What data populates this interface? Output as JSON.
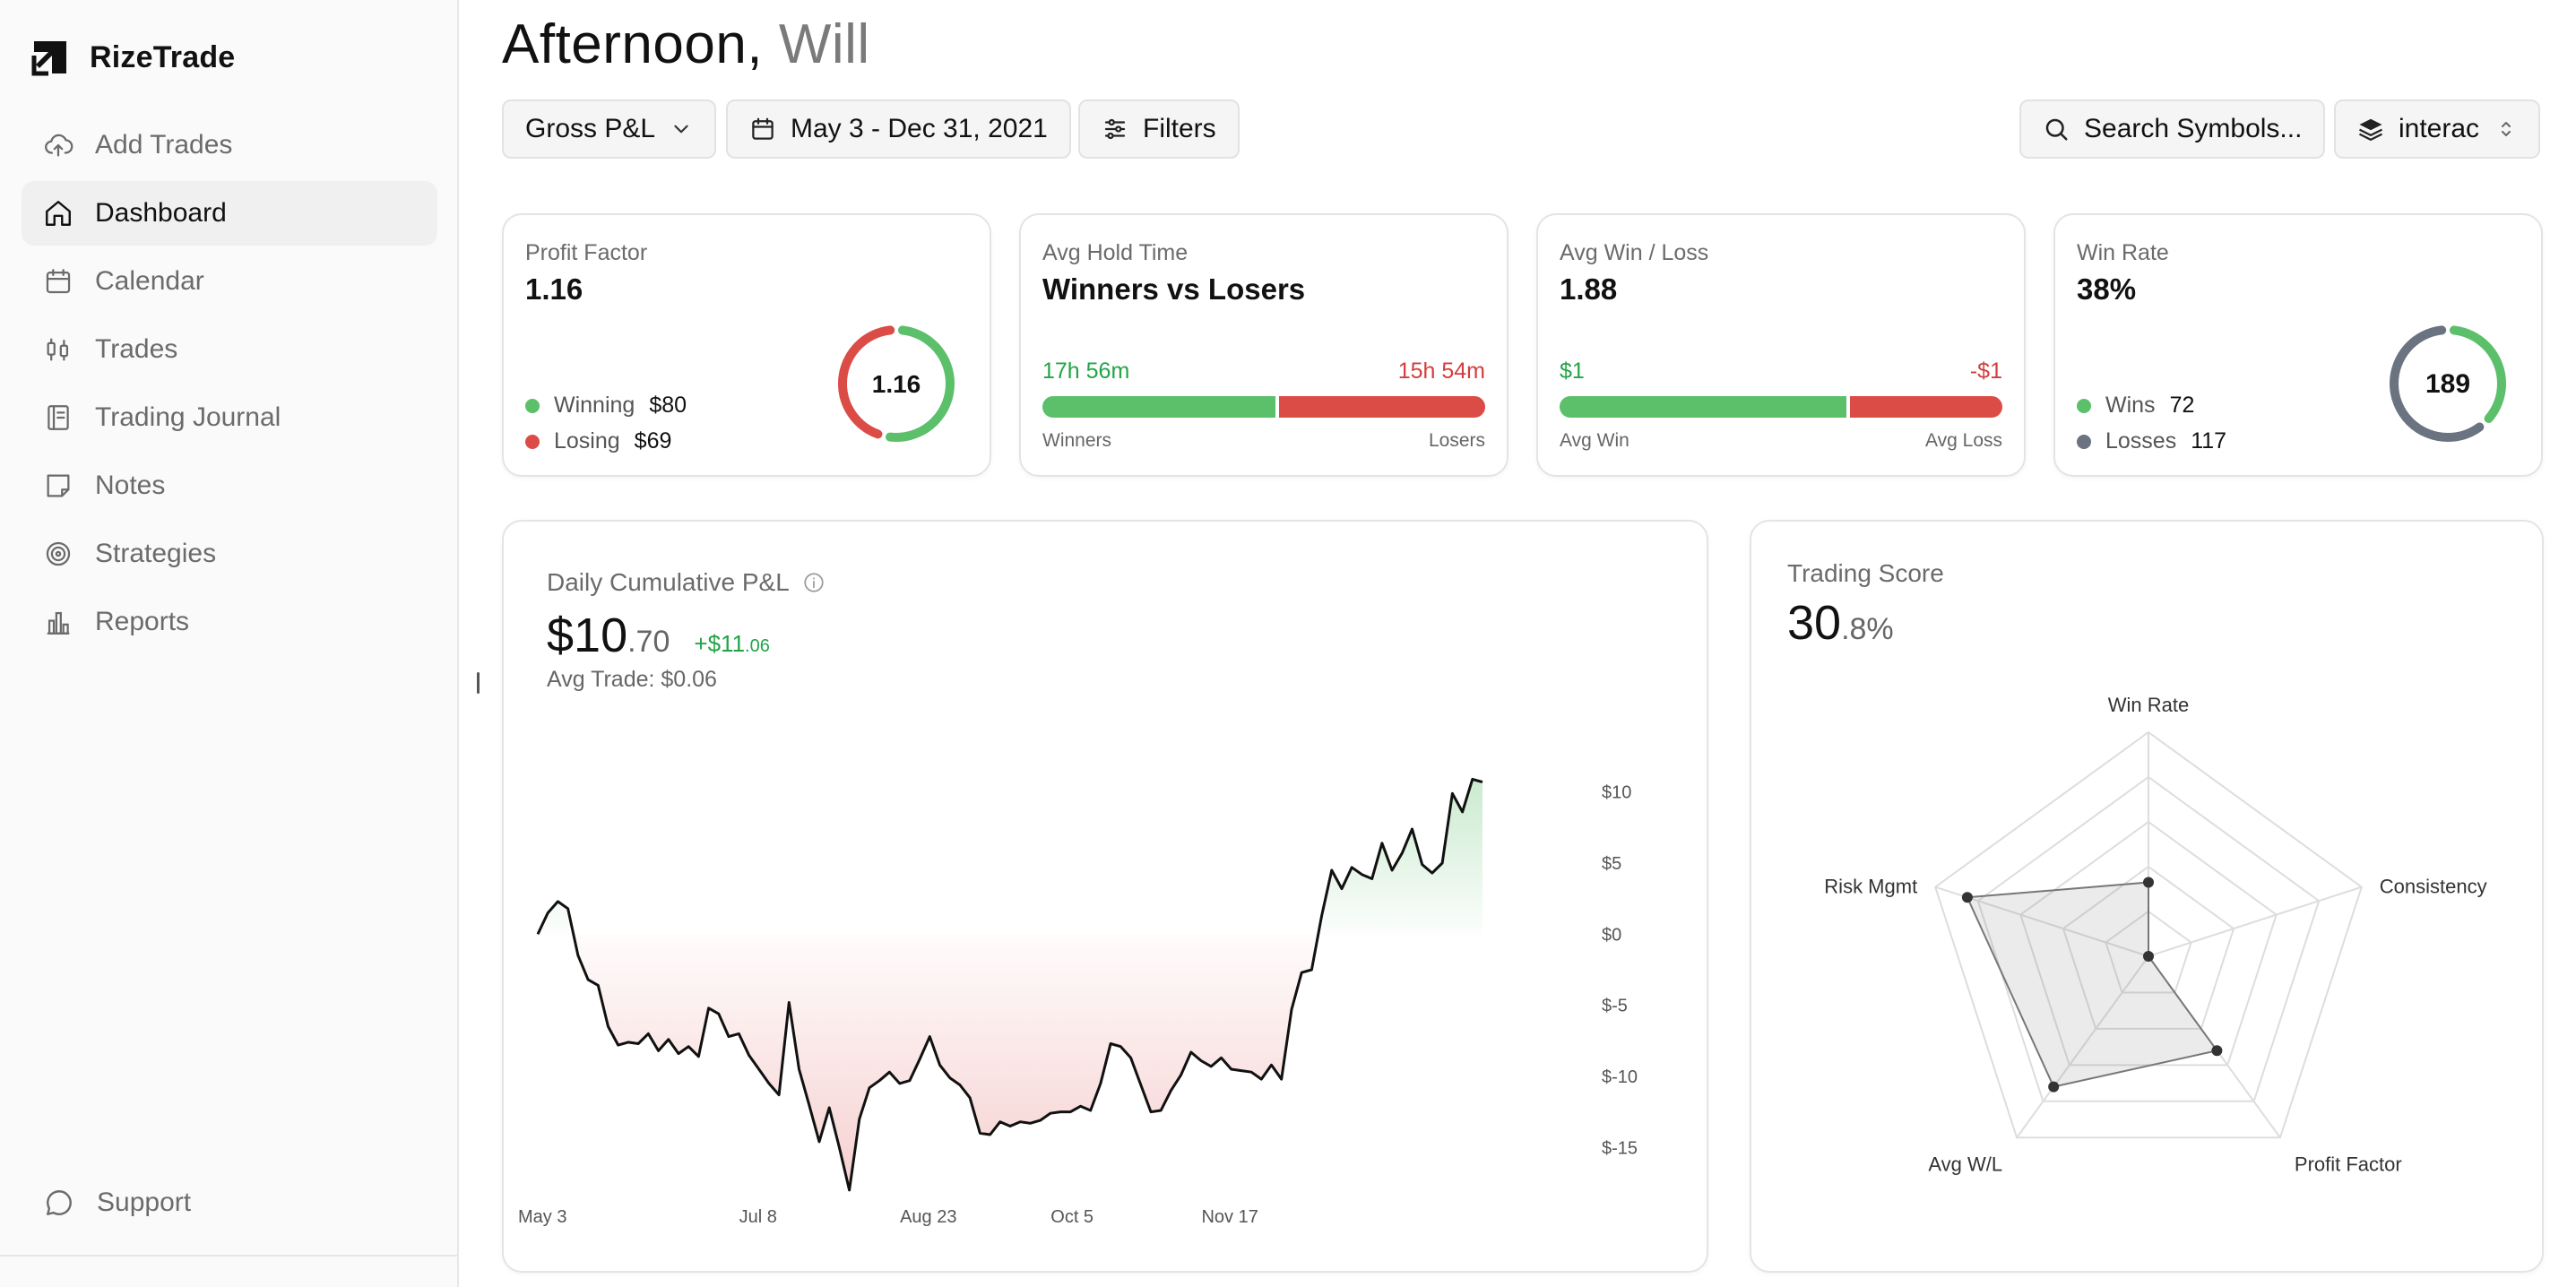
{
  "app": {
    "name": "RizeTrade"
  },
  "sidebar": {
    "items": [
      {
        "label": "Add Trades",
        "icon": "cloud-upload-icon",
        "active": false
      },
      {
        "label": "Dashboard",
        "icon": "home-icon",
        "active": true
      },
      {
        "label": "Calendar",
        "icon": "calendar-icon",
        "active": false
      },
      {
        "label": "Trades",
        "icon": "candlestick-icon",
        "active": false
      },
      {
        "label": "Trading Journal",
        "icon": "journal-icon",
        "active": false
      },
      {
        "label": "Notes",
        "icon": "note-icon",
        "active": false
      },
      {
        "label": "Strategies",
        "icon": "target-icon",
        "active": false
      },
      {
        "label": "Reports",
        "icon": "bar-chart-icon",
        "active": false
      }
    ],
    "support_label": "Support"
  },
  "header": {
    "greeting": "Afternoon,",
    "user": "Will",
    "pnl_select": "Gross P&L",
    "date_range": "May 3 - Dec 31, 2021",
    "filters_label": "Filters",
    "search_label": "Search Symbols...",
    "account_select": "interac"
  },
  "colors": {
    "green": "#5cbf6a",
    "red": "#dc4c46",
    "gray": "#6b7280",
    "positive_text": "#22a447",
    "negative_text": "#d43d3d"
  },
  "cards": {
    "profit_factor": {
      "label": "Profit Factor",
      "value": "1.16",
      "gauge_text": "1.16",
      "gauge_fraction": 0.537,
      "winning_label": "Winning",
      "winning_value": "$80",
      "losing_label": "Losing",
      "losing_value": "$69"
    },
    "avg_hold": {
      "label": "Avg Hold Time",
      "value": "Winners vs Losers",
      "left_value": "17h 56m",
      "right_value": "15h 54m",
      "left_caption": "Winners",
      "right_caption": "Losers",
      "left_fraction": 0.53
    },
    "avg_win_loss": {
      "label": "Avg Win / Loss",
      "value": "1.88",
      "left_value": "$1",
      "right_value": "-$1",
      "left_caption": "Avg Win",
      "right_caption": "Avg Loss",
      "left_fraction": 0.653
    },
    "win_rate": {
      "label": "Win Rate",
      "value": "38%",
      "gauge_text": "189",
      "gauge_fraction": 0.381,
      "wins_label": "Wins",
      "wins_value": "72",
      "losses_label": "Losses",
      "losses_value": "117"
    }
  },
  "cumulative": {
    "title": "Daily Cumulative P&L",
    "value_main": "$10",
    "value_cents": ".70",
    "delta_main": "+$11",
    "delta_cents": ".06",
    "avg_trade": "Avg Trade: $0.06"
  },
  "trading_score": {
    "label": "Trading Score",
    "value_main": "30",
    "value_cents": ".8%"
  },
  "chart_data": [
    {
      "type": "area",
      "title": "Daily Cumulative P&L",
      "x_ticks": [
        "May 3",
        "Jul 8",
        "Aug 23",
        "Oct 5",
        "Nov 17"
      ],
      "x_tick_index": [
        0,
        22,
        38,
        53,
        68
      ],
      "y_ticks": [
        "$10",
        "$5",
        "$0",
        "$-5",
        "$-10",
        "$-15"
      ],
      "y_tick_values": [
        10,
        5,
        0,
        -5,
        -10,
        -15
      ],
      "ylim": [
        -17,
        12
      ],
      "series": [
        {
          "values": [
            0,
            1.5,
            2.3,
            1.8,
            -1.5,
            -3.2,
            -3.6,
            -6.5,
            -7.8,
            -7.6,
            -7.7,
            -7.0,
            -8.2,
            -7.4,
            -8.4,
            -7.9,
            -8.6,
            -5.2,
            -5.6,
            -7.2,
            -7.0,
            -8.5,
            -9.5,
            -10.5,
            -11.3,
            -4.8,
            -9.5,
            -12.0,
            -14.6,
            -12.2,
            -15.0,
            -18.0,
            -13.0,
            -10.8,
            -10.3,
            -9.7,
            -10.5,
            -10.3,
            -8.8,
            -7.2,
            -9.2,
            -10.1,
            -10.6,
            -11.5,
            -14.0,
            -14.1,
            -13.2,
            -13.5,
            -13.2,
            -13.3,
            -13.1,
            -12.6,
            -12.5,
            -12.5,
            -12.1,
            -12.4,
            -10.5,
            -7.7,
            -7.9,
            -8.7,
            -10.6,
            -12.5,
            -12.4,
            -11.0,
            -9.9,
            -8.3,
            -8.9,
            -9.3,
            -8.7,
            -9.5,
            -9.6,
            -9.7,
            -10.2,
            -9.2,
            -10.2,
            -5.3,
            -2.7,
            -2.5,
            1.3,
            4.5,
            3.2,
            4.7,
            4.2,
            3.9,
            6.4,
            4.5,
            5.7,
            7.4,
            4.9,
            4.3,
            5.0,
            9.9,
            8.6,
            10.9,
            10.7
          ]
        }
      ]
    },
    {
      "type": "radar",
      "title": "Trading Score",
      "categories": [
        "Win Rate",
        "Consistency",
        "Profit Factor",
        "Avg W/L",
        "Risk Mgmt"
      ],
      "values": [
        0.33,
        0.0,
        0.52,
        0.72,
        0.85
      ],
      "rmax": 1.0
    }
  ]
}
